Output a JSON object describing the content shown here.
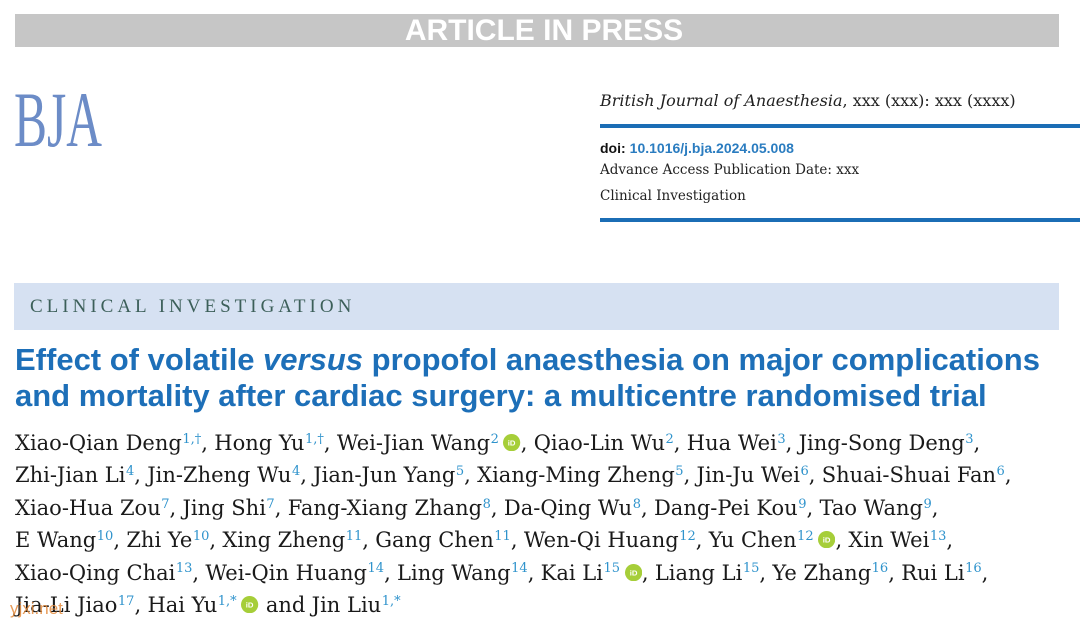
{
  "banner": "ARTICLE IN PRESS",
  "logo": "BJA",
  "journal": {
    "name": "British Journal of Anaesthesia",
    "citation": ", xxx (xxx): xxx (xxxx)"
  },
  "doi": {
    "label": "doi:",
    "value": "10.1016/j.bja.2024.05.008"
  },
  "advance_access": "Advance Access Publication Date: xxx",
  "article_type": "Clinical Investigation",
  "section": "CLINICAL INVESTIGATION",
  "title": {
    "lead": "Effect of volatile ",
    "emphasis": "versus",
    "rest": " propofol anaesthesia on major complications and mortality after cardiac surgery: a multicentre randomised trial"
  },
  "authors": [
    {
      "name": "Xiao-Qian Deng",
      "aff": "1,†",
      "sep": ","
    },
    {
      "name": "Hong Yu",
      "aff": "1,†",
      "sep": ","
    },
    {
      "name": "Wei-Jian Wang",
      "aff": "2",
      "orcid": true,
      "sep": ","
    },
    {
      "name": "Qiao-Lin Wu",
      "aff": "2",
      "sep": ","
    },
    {
      "name": "Hua Wei",
      "aff": "3",
      "sep": ","
    },
    {
      "name": "Jing-Song Deng",
      "aff": "3",
      "sep": ","
    },
    {
      "name": "Zhi-Jian Li",
      "aff": "4",
      "sep": ","
    },
    {
      "name": "Jin-Zheng Wu",
      "aff": "4",
      "sep": ","
    },
    {
      "name": "Jian-Jun Yang",
      "aff": "5",
      "sep": ","
    },
    {
      "name": "Xiang-Ming Zheng",
      "aff": "5",
      "sep": ","
    },
    {
      "name": "Jin-Ju Wei",
      "aff": "6",
      "sep": ","
    },
    {
      "name": "Shuai-Shuai Fan",
      "aff": "6",
      "sep": ","
    },
    {
      "name": "Xiao-Hua Zou",
      "aff": "7",
      "sep": ","
    },
    {
      "name": "Jing Shi",
      "aff": "7",
      "sep": ","
    },
    {
      "name": "Fang-Xiang Zhang",
      "aff": "8",
      "sep": ","
    },
    {
      "name": "Da-Qing Wu",
      "aff": "8",
      "sep": ","
    },
    {
      "name": "Dang-Pei Kou",
      "aff": "9",
      "sep": ","
    },
    {
      "name": "Tao Wang",
      "aff": "9",
      "sep": ","
    },
    {
      "name": "E Wang",
      "aff": "10",
      "sep": ","
    },
    {
      "name": "Zhi Ye",
      "aff": "10",
      "sep": ","
    },
    {
      "name": "Xing Zheng",
      "aff": "11",
      "sep": ","
    },
    {
      "name": "Gang Chen",
      "aff": "11",
      "sep": ","
    },
    {
      "name": "Wen-Qi Huang",
      "aff": "12",
      "sep": ","
    },
    {
      "name": "Yu Chen",
      "aff": "12",
      "orcid": true,
      "sep": ","
    },
    {
      "name": "Xin Wei",
      "aff": "13",
      "sep": ","
    },
    {
      "name": "Xiao-Qing Chai",
      "aff": "13",
      "sep": ","
    },
    {
      "name": "Wei-Qin Huang",
      "aff": "14",
      "sep": ","
    },
    {
      "name": "Ling Wang",
      "aff": "14",
      "sep": ","
    },
    {
      "name": "Kai Li",
      "aff": "15",
      "orcid": true,
      "sep": ","
    },
    {
      "name": "Liang Li",
      "aff": "15",
      "sep": ","
    },
    {
      "name": "Ye Zhang",
      "aff": "16",
      "sep": ","
    },
    {
      "name": "Rui Li",
      "aff": "16",
      "sep": ","
    },
    {
      "name": "Jia-Li Jiao",
      "aff": "17",
      "sep": ","
    },
    {
      "name": "Hai Yu",
      "aff": "1,*",
      "orcid": true,
      "sep": "and"
    },
    {
      "name": "Jin Liu",
      "aff": "1,*"
    }
  ],
  "icons": {
    "orcid": "orcid-icon",
    "orcid_label": "iD"
  },
  "watermark": "yjxi.net",
  "colors": {
    "banner_background": "#c6c6c6",
    "banner_text": "#ffffff",
    "logo": "#6c8cc7",
    "rule": "#1b6db5",
    "doi_link": "#2a7cc0",
    "section_background": "#d6e1f2",
    "section_text": "#3c5f59",
    "title": "#1d6fb8",
    "affiliation": "#2f93cc",
    "orcid": "#a6ce39",
    "watermark": "#e38a3c"
  }
}
